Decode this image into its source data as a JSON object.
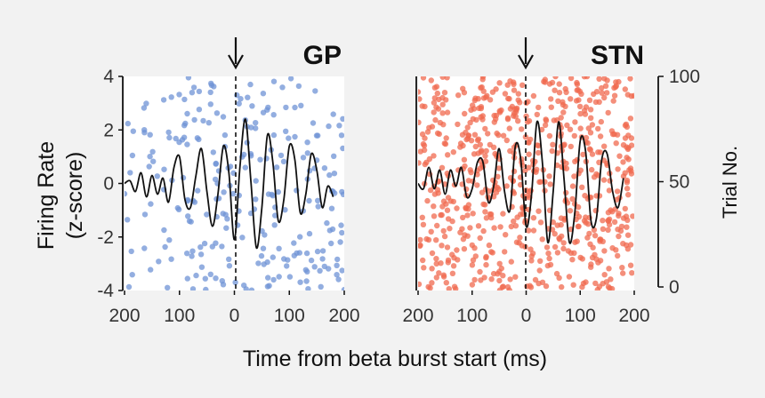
{
  "figure": {
    "xlabel": "Time from beta burst start (ms)",
    "ylabel_line1": "Firing Rate",
    "ylabel_line2": "(z-score)",
    "right_ylabel": "Trial No.",
    "colors": {
      "background": "#f2f2f2",
      "axis": "#111111",
      "trace": "#111111"
    }
  },
  "chart_data": [
    {
      "type": "scatter",
      "title": "GP",
      "xlim": [
        -200,
        200
      ],
      "x_tick_labels": [
        "200",
        "100",
        "0",
        "100",
        "200"
      ],
      "x_tick_values": [
        -200,
        -100,
        0,
        100,
        200
      ],
      "ylim": [
        -4,
        4
      ],
      "y_tick_labels": [
        "4",
        "2",
        "0",
        "-2",
        "-4"
      ],
      "y_tick_values": [
        4,
        2,
        0,
        -2,
        -4
      ],
      "trials_ylim": [
        0,
        100
      ],
      "event_marker": {
        "x": 0,
        "style": "dashed line with down arrow"
      },
      "raster_color": "#6f93d6",
      "raster_dot_count": 260,
      "series": [
        {
          "kind": "line",
          "color": "#111111",
          "x": [
            -200,
            -190,
            -180,
            -170,
            -160,
            -150,
            -140,
            -130,
            -120,
            -110,
            -100,
            -90,
            -80,
            -70,
            -60,
            -50,
            -40,
            -30,
            -20,
            -10,
            0,
            10,
            20,
            30,
            40,
            50,
            60,
            70,
            80,
            90,
            100,
            110,
            120,
            130,
            140,
            150,
            160,
            170,
            180
          ],
          "y": [
            0,
            0.1,
            -0.3,
            0.4,
            -0.5,
            0.3,
            -0.4,
            0.2,
            -0.7,
            0.6,
            1.0,
            -0.6,
            -0.9,
            0.3,
            1.3,
            -0.3,
            -1.6,
            -0.4,
            1.4,
            0.4,
            -2.1,
            0.6,
            2.4,
            0.1,
            -2.4,
            -0.9,
            1.8,
            0.8,
            -1.4,
            -0.6,
            1.4,
            0.9,
            -1.1,
            -0.4,
            1.1,
            0.5,
            -0.9,
            -0.1,
            -0.5
          ]
        }
      ]
    },
    {
      "type": "scatter",
      "title": "STN",
      "xlim": [
        -200,
        200
      ],
      "x_tick_labels": [
        "200",
        "100",
        "0",
        "100",
        "200"
      ],
      "x_tick_values": [
        -200,
        -100,
        0,
        100,
        200
      ],
      "ylim": [
        -4,
        4
      ],
      "trials_ylim": [
        0,
        100
      ],
      "right_tick_labels": [
        "100",
        "50",
        "0"
      ],
      "right_tick_values": [
        100,
        50,
        0
      ],
      "event_marker": {
        "x": 0,
        "style": "dashed line with down arrow"
      },
      "raster_color": "#f0694f",
      "raster_dot_count": 700,
      "series": [
        {
          "kind": "line",
          "color": "#111111",
          "x": [
            -200,
            -190,
            -180,
            -170,
            -160,
            -150,
            -140,
            -130,
            -120,
            -110,
            -100,
            -90,
            -80,
            -70,
            -60,
            -50,
            -40,
            -30,
            -20,
            -10,
            0,
            10,
            20,
            30,
            40,
            50,
            60,
            70,
            80,
            90,
            100,
            110,
            120,
            130,
            140,
            150,
            160,
            170,
            180
          ],
          "y": [
            0,
            -0.2,
            0.6,
            -0.2,
            0.5,
            -0.4,
            0.5,
            -0.1,
            0.6,
            -0.5,
            -0.2,
            0.8,
            0.8,
            -0.7,
            -0.1,
            1.3,
            -0.3,
            -1.0,
            1.4,
            0.9,
            -1.6,
            -0.4,
            2.3,
            0.8,
            -2.2,
            -0.3,
            2.3,
            0.2,
            -2.2,
            -1.1,
            1.6,
            1.2,
            -1.4,
            -1.3,
            0.9,
            1.1,
            -0.3,
            -0.9,
            0.2
          ]
        }
      ]
    }
  ]
}
